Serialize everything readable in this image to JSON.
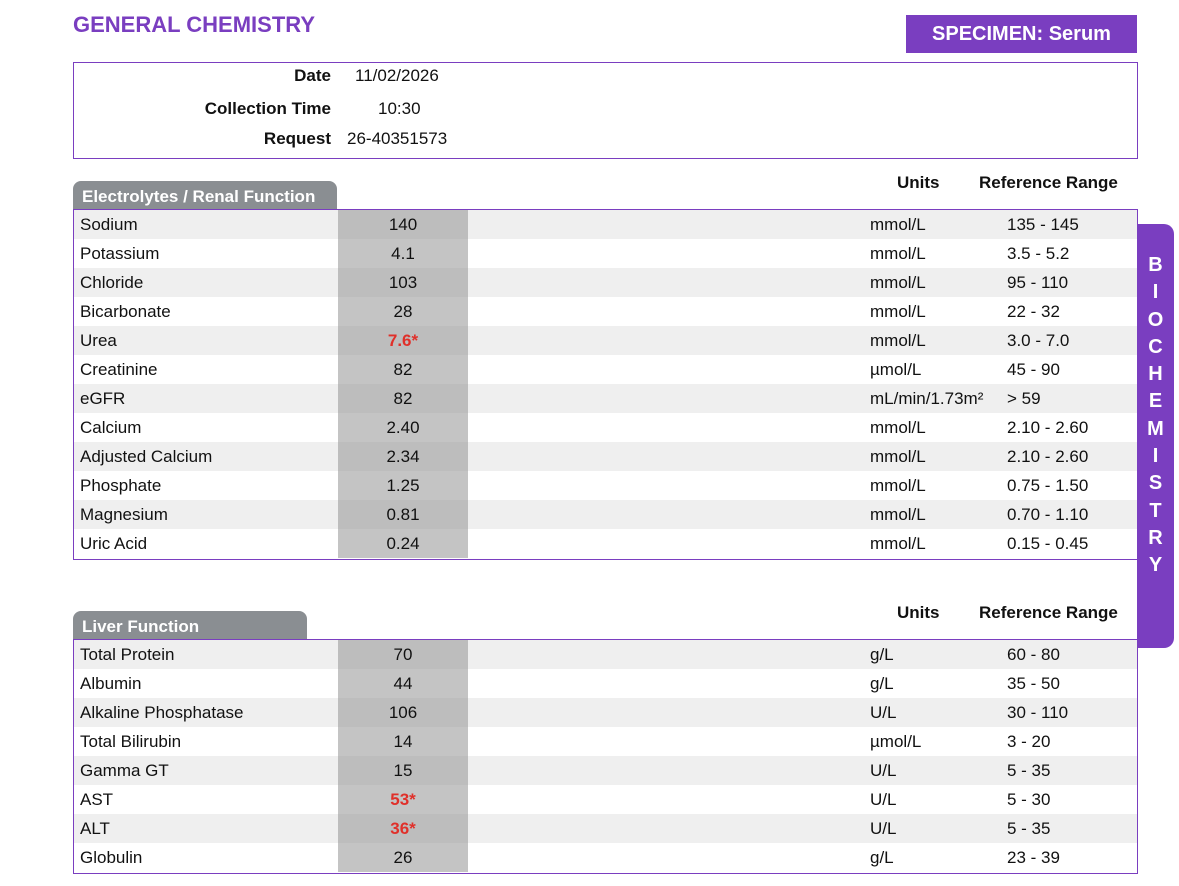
{
  "header": {
    "title": "GENERAL CHEMISTRY",
    "specimen": "SPECIMEN: Serum"
  },
  "info": [
    {
      "label": "Date",
      "value": "11/02/2026"
    },
    {
      "label": "Collection Time",
      "value": "10:30"
    },
    {
      "label": "Request",
      "value": "26-40351573"
    }
  ],
  "side_tab": "BIOCHEMISTRY",
  "sections": [
    {
      "title": "Electrolytes / Renal Function",
      "units_header": "Units",
      "range_header": "Reference Range",
      "rows": [
        [
          "Sodium",
          "140",
          "mmol/L",
          "135 - 145"
        ],
        [
          "Potassium",
          "4.1",
          "mmol/L",
          "3.5 - 5.2"
        ],
        [
          "Chloride",
          "103",
          "mmol/L",
          "95 - 110"
        ],
        [
          "Bicarbonate",
          "28",
          "mmol/L",
          "22 - 32"
        ],
        [
          "Urea",
          "7.6*",
          "mmol/L",
          "3.0 - 7.0"
        ],
        [
          "Creatinine",
          "82",
          "µmol/L",
          "45 - 90"
        ],
        [
          "eGFR",
          "82",
          "mL/min/1.73m²",
          "> 59"
        ],
        [
          "Calcium",
          "2.40",
          "mmol/L",
          "2.10 - 2.60"
        ],
        [
          "Adjusted Calcium",
          "2.34",
          "mmol/L",
          "2.10 - 2.60"
        ],
        [
          "Phosphate",
          "1.25",
          "mmol/L",
          "0.75 - 1.50"
        ],
        [
          "Magnesium",
          "0.81",
          "mmol/L",
          "0.70 - 1.10"
        ],
        [
          "Uric Acid",
          "0.24",
          "mmol/L",
          "0.15 - 0.45"
        ]
      ]
    },
    {
      "title": "Liver Function",
      "units_header": "Units",
      "range_header": "Reference Range",
      "rows": [
        [
          "Total Protein",
          "70",
          "g/L",
          "60 - 80"
        ],
        [
          "Albumin",
          "44",
          "g/L",
          "35 - 50"
        ],
        [
          "Alkaline Phosphatase",
          "106",
          "U/L",
          "30 - 110"
        ],
        [
          "Total Bilirubin",
          "14",
          "µmol/L",
          "3 - 20"
        ],
        [
          "Gamma GT",
          "15",
          "U/L",
          "5 - 35"
        ],
        [
          "AST",
          "53*",
          "U/L",
          "5 - 30"
        ],
        [
          "ALT",
          "36*",
          "U/L",
          "5 - 35"
        ],
        [
          "Globulin",
          "26",
          "g/L",
          "23 - 39"
        ]
      ]
    }
  ]
}
